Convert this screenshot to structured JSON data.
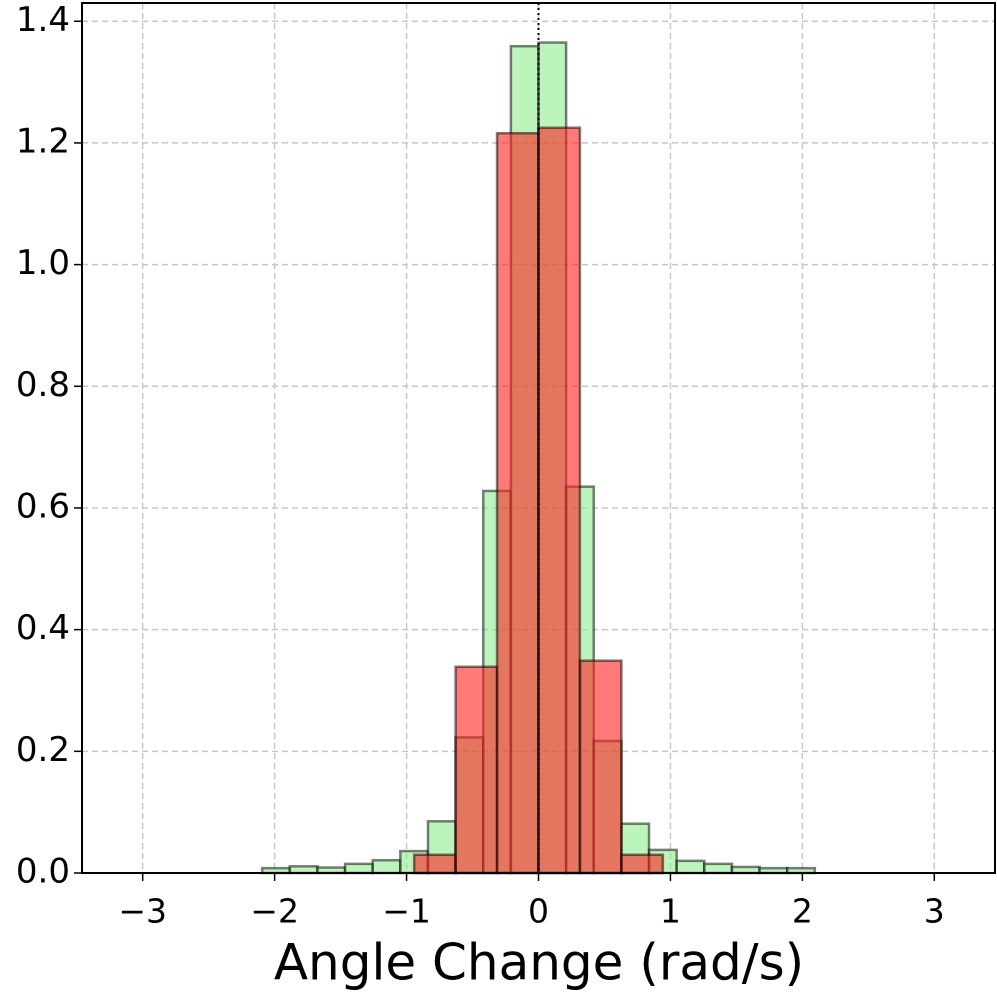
{
  "chart_data": {
    "type": "histogram",
    "xlabel": "Angle Change (rad/s)",
    "xlim": [
      -3.46,
      3.46
    ],
    "ylim": [
      0,
      1.43
    ],
    "xticks": [
      {
        "value": -3,
        "label": "−3"
      },
      {
        "value": -2,
        "label": "−2"
      },
      {
        "value": -1,
        "label": "−1"
      },
      0,
      1,
      2,
      3
    ],
    "yticks": [
      {
        "value": 0,
        "label": "0.0"
      },
      0.2,
      0.4,
      0.6,
      0.8,
      {
        "value": 1,
        "label": "1.0"
      },
      1.2,
      1.4
    ],
    "grid": true,
    "vline": 0,
    "series": [
      {
        "color": "#90ee90",
        "bins": [
          -3.1416,
          -2.9322,
          -2.7227,
          -2.5133,
          -2.3038,
          -2.0944,
          -1.885,
          -1.6755,
          -1.4661,
          -1.2566,
          -1.0472,
          -0.8378,
          -0.6283,
          -0.4189,
          -0.2094,
          0,
          0.2094,
          0.4189,
          0.6283,
          0.8378,
          1.0472,
          1.2566,
          1.4661,
          1.6755,
          1.885,
          2.0944,
          2.3038,
          2.5133,
          2.7227,
          2.9322,
          3.1416
        ],
        "values": [
          0,
          0,
          0,
          0,
          0,
          0.008,
          0.011,
          0.009,
          0.015,
          0.021,
          0.036,
          0.085,
          0.223,
          0.628,
          1.359,
          1.365,
          0.635,
          0.217,
          0.081,
          0.038,
          0.02,
          0.015,
          0.01,
          0.008,
          0.008,
          0,
          0,
          0,
          0,
          0
        ]
      },
      {
        "color": "#ff2020",
        "bins": [
          -3.1416,
          -2.8274,
          -2.5133,
          -2.1991,
          -1.885,
          -1.5708,
          -1.2566,
          -0.9425,
          -0.6283,
          -0.3142,
          0,
          0.3142,
          0.6283,
          0.9425,
          1.2566,
          1.5708,
          1.885,
          2.1991,
          2.5133,
          2.8274,
          3.1416
        ],
        "values": [
          0,
          0,
          0,
          0,
          0,
          0,
          0,
          0.03,
          0.339,
          1.216,
          1.225,
          0.349,
          0.03,
          0,
          0,
          0,
          0,
          0,
          0,
          0
        ]
      }
    ]
  }
}
